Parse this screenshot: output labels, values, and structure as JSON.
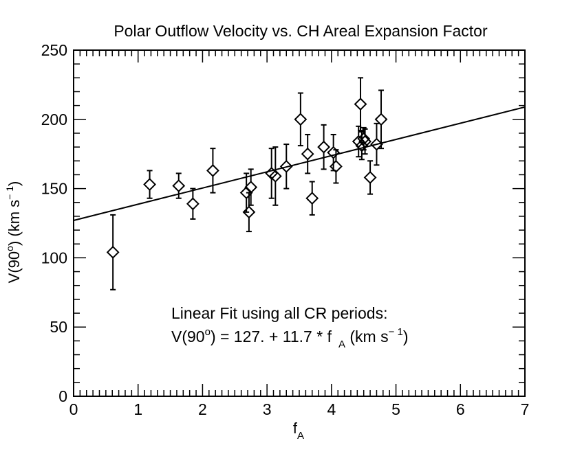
{
  "chart_data": {
    "type": "scatter",
    "title": "Polar Outflow Velocity vs. CH Areal Expansion Factor",
    "xlabel": {
      "base": "f",
      "sub": "A"
    },
    "ylabel": {
      "pre": "V(90",
      "sup1": "o",
      "mid": ") (km s",
      "sup2": "− 1",
      "post": ")"
    },
    "xlim": [
      0,
      7
    ],
    "ylim": [
      0,
      250
    ],
    "xticks": [
      0,
      1,
      2,
      3,
      4,
      5,
      6,
      7
    ],
    "yticks": [
      0,
      50,
      100,
      150,
      200,
      250
    ],
    "xtick_labels": [
      "0",
      "1",
      "2",
      "3",
      "4",
      "5",
      "6",
      "7"
    ],
    "ytick_labels": [
      "0",
      "50",
      "100",
      "150",
      "200",
      "250"
    ],
    "x_minor_step": 0.1,
    "y_minor_step": 10,
    "grid": false,
    "annotation": {
      "line1": "Linear Fit using all CR periods:",
      "eq_pre": "V(90",
      "eq_sup": "o",
      "eq_mid": ") = 127. + 11.7 * f",
      "eq_sub": "A",
      "eq_post": " (km s",
      "eq_sup2": "− 1",
      "eq_end": ")"
    },
    "fit": {
      "intercept": 127.0,
      "slope": 11.7,
      "x_range": [
        0,
        7
      ]
    },
    "series": [
      {
        "name": "CR periods",
        "marker": "diamond",
        "points": [
          {
            "x": 0.61,
            "y": 104,
            "err": 27
          },
          {
            "x": 1.18,
            "y": 153,
            "err": 10
          },
          {
            "x": 1.63,
            "y": 152,
            "err": 9
          },
          {
            "x": 1.85,
            "y": 139,
            "err": 11
          },
          {
            "x": 2.16,
            "y": 163,
            "err": 16
          },
          {
            "x": 2.68,
            "y": 147,
            "err": 14
          },
          {
            "x": 2.72,
            "y": 133,
            "err": 14
          },
          {
            "x": 2.75,
            "y": 151,
            "err": 13
          },
          {
            "x": 3.07,
            "y": 161,
            "err": 18
          },
          {
            "x": 3.13,
            "y": 159,
            "err": 21
          },
          {
            "x": 3.3,
            "y": 166,
            "err": 16
          },
          {
            "x": 3.52,
            "y": 200,
            "err": 19
          },
          {
            "x": 3.63,
            "y": 175,
            "err": 14
          },
          {
            "x": 3.7,
            "y": 143,
            "err": 12
          },
          {
            "x": 3.88,
            "y": 180,
            "err": 16
          },
          {
            "x": 4.03,
            "y": 176,
            "err": 13
          },
          {
            "x": 4.07,
            "y": 166,
            "err": 12
          },
          {
            "x": 4.42,
            "y": 184,
            "err": 11
          },
          {
            "x": 4.45,
            "y": 211,
            "err": 19
          },
          {
            "x": 4.47,
            "y": 181,
            "err": 10
          },
          {
            "x": 4.5,
            "y": 186,
            "err": 8
          },
          {
            "x": 4.52,
            "y": 184,
            "err": 9
          },
          {
            "x": 4.6,
            "y": 158,
            "err": 12
          },
          {
            "x": 4.7,
            "y": 182,
            "err": 15
          },
          {
            "x": 4.77,
            "y": 200,
            "err": 21
          }
        ]
      }
    ]
  }
}
